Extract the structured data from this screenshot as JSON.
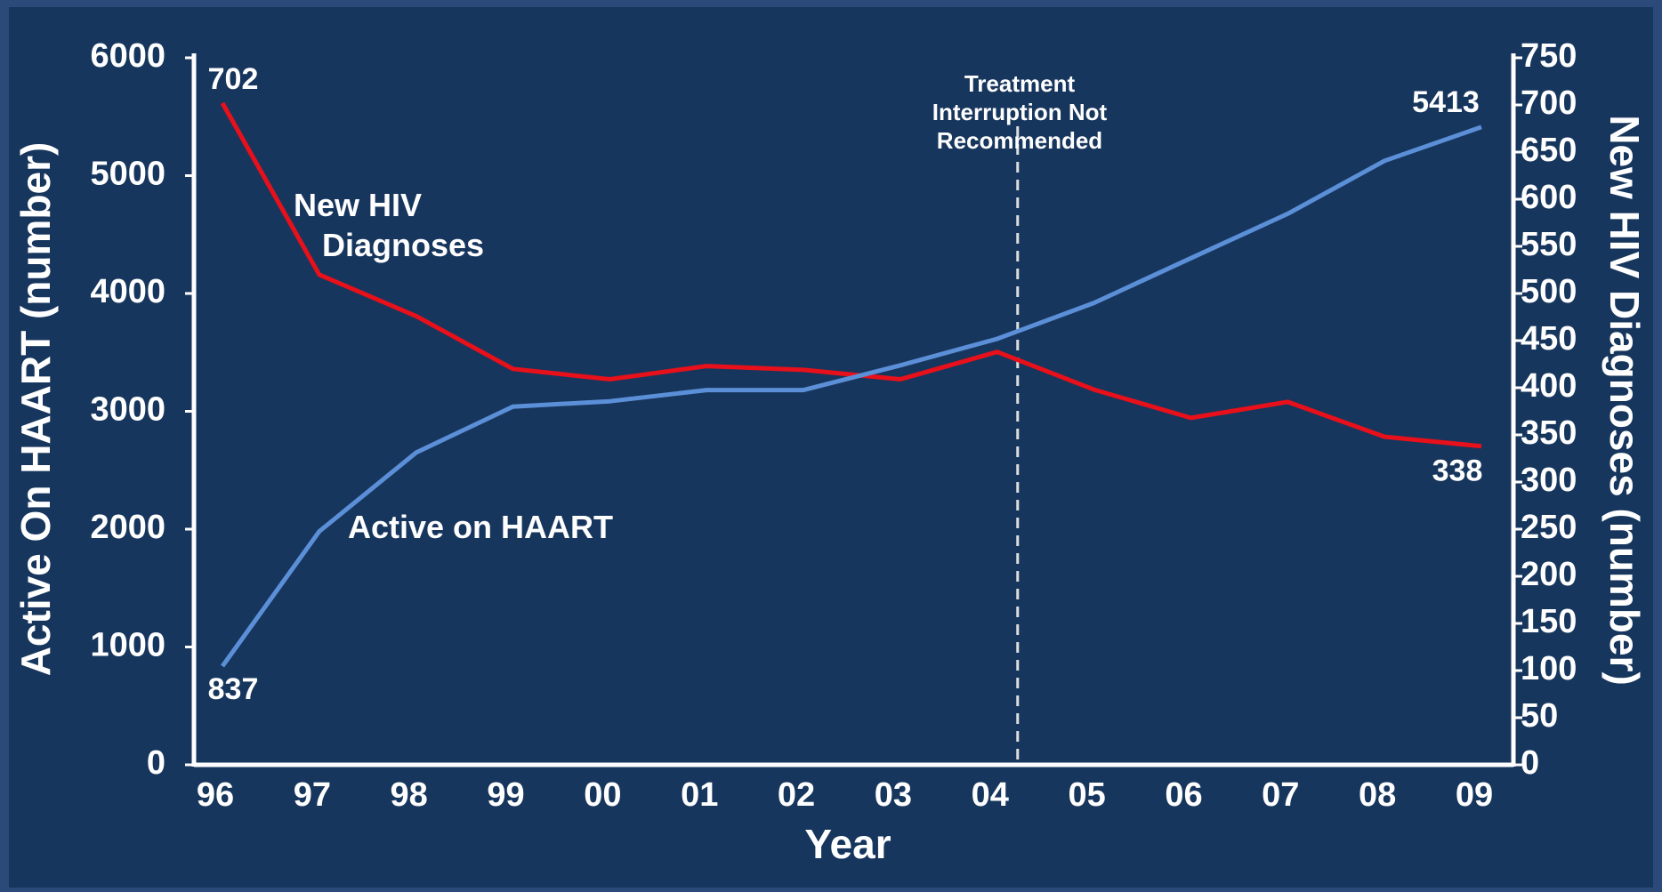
{
  "chart_data": {
    "type": "line",
    "xlabel": "Year",
    "ylabel": "Active On HAART (number)",
    "y2label": "New HIV Diagnoses (number)",
    "annotation": "Treatment Interruption Not Recommended",
    "categories": [
      "96",
      "97",
      "98",
      "99",
      "00",
      "01",
      "02",
      "03",
      "04",
      "05",
      "06",
      "07",
      "08",
      "09"
    ],
    "series": [
      {
        "name": "New HIV Diagnoses",
        "color": "#e8101a",
        "axis": "y2",
        "values": [
          702,
          520,
          476,
          420,
          409,
          423,
          419,
          409,
          438,
          398,
          368,
          385,
          348,
          338
        ],
        "value_labels": [
          "702",
          null,
          null,
          null,
          null,
          null,
          null,
          null,
          null,
          null,
          null,
          null,
          null,
          "338"
        ]
      },
      {
        "name": "Active on HAART",
        "color": "#5b8fd8",
        "values": [
          837,
          1980,
          2650,
          3040,
          3085,
          3180,
          3180,
          3390,
          3615,
          3920,
          4300,
          4676,
          5126,
          5413
        ],
        "value_labels": [
          "837",
          null,
          null,
          null,
          null,
          null,
          null,
          null,
          null,
          null,
          null,
          null,
          null,
          "5413"
        ]
      }
    ],
    "ylim": [
      0,
      6000
    ],
    "yticks": [
      0,
      1000,
      2000,
      3000,
      4000,
      5000,
      6000
    ],
    "y2lim": [
      0,
      750
    ],
    "y2ticks": [
      0,
      50,
      100,
      150,
      200,
      250,
      300,
      350,
      400,
      450,
      500,
      550,
      600,
      650,
      700,
      750
    ],
    "grid": false
  }
}
